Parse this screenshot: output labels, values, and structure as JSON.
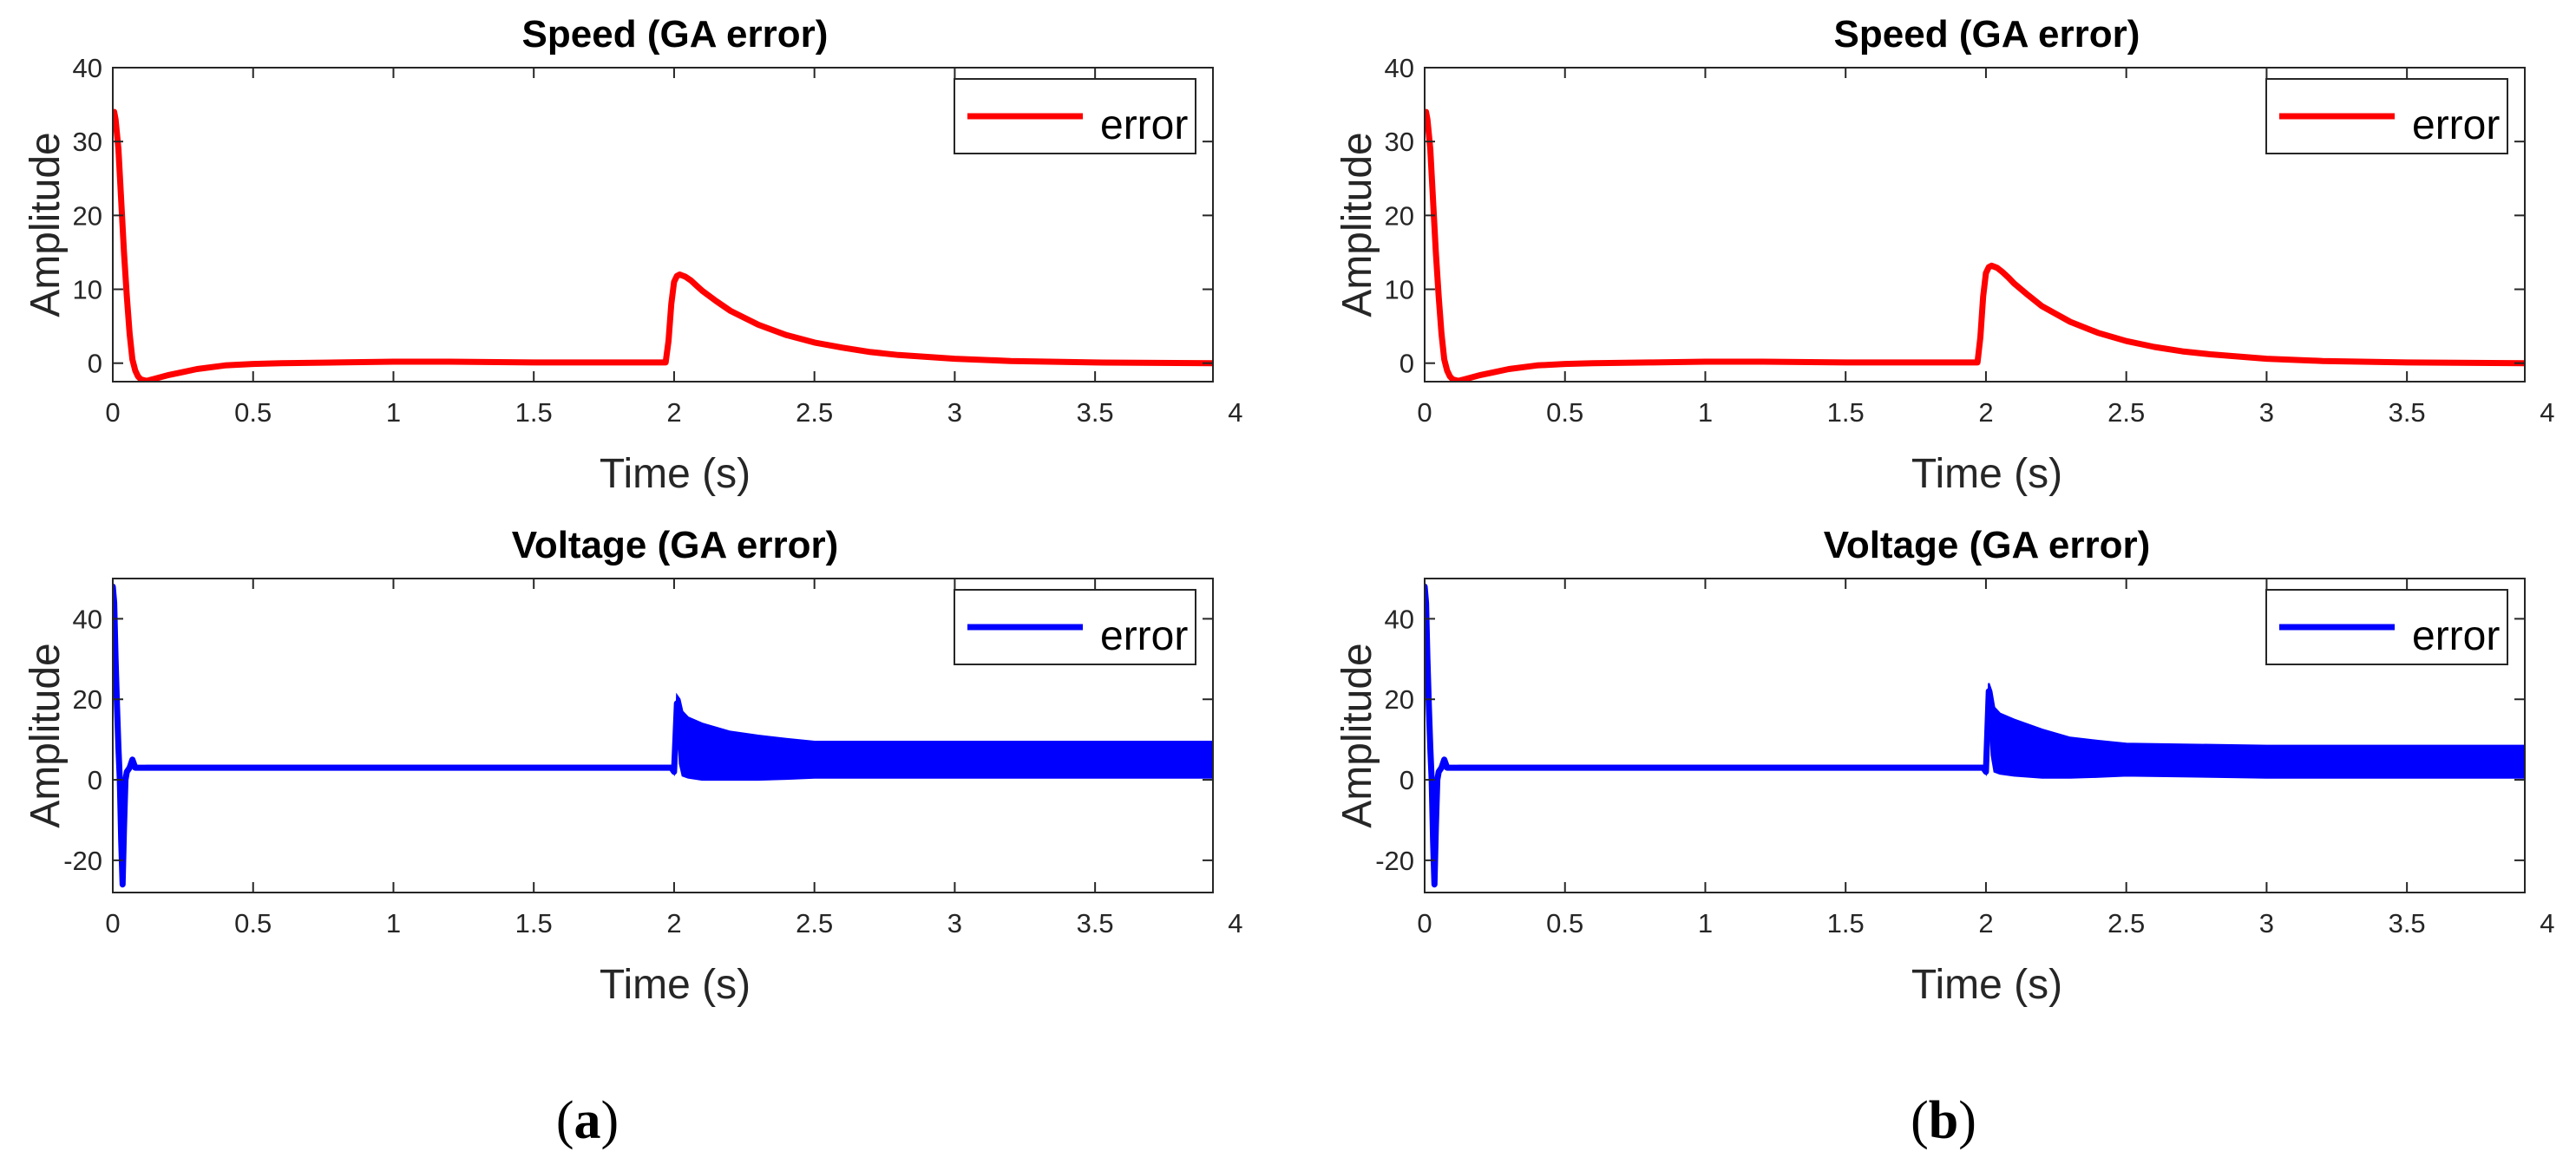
{
  "colors": {
    "speed_series": "#ff0000",
    "voltage_series": "#0000ff",
    "axes": "#262626"
  },
  "chart_data": [
    {
      "id": "a-top",
      "panel": "a",
      "type": "line",
      "title": "Speed (GA error)",
      "xlabel": "Time (s)",
      "ylabel": "Amplitude",
      "xlim": [
        0,
        3.92
      ],
      "ylim": [
        -2.5,
        40
      ],
      "xticks": [
        0,
        0.5,
        1,
        1.5,
        2,
        2.5,
        3,
        3.5,
        4
      ],
      "xtick_labels": [
        "0",
        "0.5",
        "1",
        "1.5",
        "2",
        "2.5",
        "3",
        "3.5",
        "4"
      ],
      "yticks": [
        0,
        10,
        20,
        30,
        40
      ],
      "ytick_labels": [
        "0",
        "10",
        "20",
        "30",
        "40"
      ],
      "legend": "error",
      "legend_position": "top-right",
      "series": [
        {
          "name": "error",
          "color": "#ff0000",
          "style": "smooth",
          "x": [
            0,
            0.005,
            0.01,
            0.02,
            0.03,
            0.04,
            0.05,
            0.06,
            0.07,
            0.08,
            0.09,
            0.1,
            0.12,
            0.15,
            0.2,
            0.25,
            0.3,
            0.4,
            0.5,
            0.6,
            0.8,
            1.0,
            1.2,
            1.5,
            1.8,
            1.97,
            1.98,
            1.99,
            2.0,
            2.01,
            2.02,
            2.04,
            2.06,
            2.08,
            2.1,
            2.15,
            2.2,
            2.3,
            2.4,
            2.5,
            2.6,
            2.7,
            2.8,
            3.0,
            3.2,
            3.5,
            3.92
          ],
          "y": [
            33,
            34,
            33,
            29,
            22,
            15,
            9,
            4,
            0.5,
            -1,
            -1.8,
            -2.2,
            -2.4,
            -2.1,
            -1.6,
            -1.2,
            -0.8,
            -0.3,
            -0.1,
            0,
            0.1,
            0.2,
            0.2,
            0.1,
            0.1,
            0.1,
            3,
            8,
            11,
            11.8,
            12,
            11.7,
            11.2,
            10.5,
            9.8,
            8.4,
            7.1,
            5.2,
            3.8,
            2.8,
            2.1,
            1.5,
            1.1,
            0.6,
            0.3,
            0.1,
            0
          ]
        }
      ]
    },
    {
      "id": "a-bottom",
      "panel": "a",
      "type": "line",
      "title": "Voltage (GA error)",
      "xlabel": "Time (s)",
      "ylabel": "Amplitude",
      "xlim": [
        0,
        3.92
      ],
      "ylim": [
        -28,
        50
      ],
      "xticks": [
        0,
        0.5,
        1,
        1.5,
        2,
        2.5,
        3,
        3.5,
        4
      ],
      "xtick_labels": [
        "0",
        "0.5",
        "1",
        "1.5",
        "2",
        "2.5",
        "3",
        "3.5",
        "4"
      ],
      "yticks": [
        -20,
        0,
        20,
        40
      ],
      "ytick_labels": [
        "-20",
        "0",
        "20",
        "40"
      ],
      "legend": "error",
      "legend_position": "top-right",
      "series": [
        {
          "name": "error",
          "color": "#0000ff",
          "style": "noisy",
          "x": [
            0,
            0.005,
            0.01,
            0.015,
            0.02,
            0.025,
            0.03,
            0.035,
            0.04,
            0.045,
            0.05,
            0.06,
            0.07,
            0.08,
            0.09,
            0.1,
            0.12,
            0.15,
            0.2,
            0.5,
            1.0,
            1.5,
            1.98,
            1.99,
            2.0,
            2.01,
            2.02,
            2.03,
            2.05,
            2.1,
            2.2,
            2.3,
            2.4,
            2.5,
            2.7,
            3.0,
            3.5,
            3.92
          ],
          "y": [
            48,
            44,
            30,
            18,
            8,
            0,
            -15,
            -26,
            -12,
            0,
            2,
            3,
            5,
            3,
            3,
            3,
            3,
            3,
            3,
            3,
            3,
            3,
            3,
            3,
            2,
            19,
            12,
            9,
            8,
            7,
            6,
            5.5,
            5.2,
            5,
            5,
            5,
            5,
            5
          ],
          "band": [
            0,
            0,
            0,
            0,
            0,
            0,
            0,
            0,
            0,
            0,
            0,
            0,
            0,
            0,
            0,
            0,
            0.5,
            0.5,
            0.5,
            0.5,
            0.5,
            0.5,
            0.5,
            0.5,
            0.5,
            2,
            8,
            8,
            7.5,
            7,
            6,
            5.5,
            5,
            4.5,
            4.5,
            4.5,
            4.5,
            4.5
          ]
        }
      ]
    },
    {
      "id": "b-top",
      "panel": "b",
      "type": "line",
      "title": "Speed (GA error)",
      "xlabel": "Time (s)",
      "ylabel": "Amplitude",
      "xlim": [
        0,
        3.92
      ],
      "ylim": [
        -2.5,
        40
      ],
      "xticks": [
        0,
        0.5,
        1,
        1.5,
        2,
        2.5,
        3,
        3.5,
        4
      ],
      "xtick_labels": [
        "0",
        "0.5",
        "1",
        "1.5",
        "2",
        "2.5",
        "3",
        "3.5",
        "4"
      ],
      "yticks": [
        0,
        10,
        20,
        30,
        40
      ],
      "ytick_labels": [
        "0",
        "10",
        "20",
        "30",
        "40"
      ],
      "legend": "error",
      "legend_position": "top-right",
      "series": [
        {
          "name": "error",
          "color": "#ff0000",
          "style": "smooth",
          "x": [
            0,
            0.005,
            0.01,
            0.02,
            0.03,
            0.04,
            0.05,
            0.06,
            0.07,
            0.08,
            0.09,
            0.1,
            0.12,
            0.15,
            0.2,
            0.25,
            0.3,
            0.4,
            0.5,
            0.6,
            0.8,
            1.0,
            1.2,
            1.5,
            1.8,
            1.97,
            1.98,
            1.99,
            2.0,
            2.01,
            2.02,
            2.04,
            2.06,
            2.08,
            2.1,
            2.15,
            2.2,
            2.3,
            2.4,
            2.5,
            2.6,
            2.7,
            2.8,
            3.0,
            3.2,
            3.5,
            3.92
          ],
          "y": [
            33,
            34,
            33,
            29,
            22,
            15,
            9,
            4,
            0.5,
            -1,
            -1.8,
            -2.2,
            -2.4,
            -2.1,
            -1.6,
            -1.2,
            -0.8,
            -0.3,
            -0.1,
            0,
            0.1,
            0.2,
            0.2,
            0.1,
            0.1,
            0.1,
            3.5,
            9,
            12.2,
            13,
            13.2,
            12.9,
            12.3,
            11.6,
            10.8,
            9.2,
            7.7,
            5.6,
            4.1,
            3.0,
            2.2,
            1.6,
            1.2,
            0.6,
            0.3,
            0.1,
            0
          ]
        }
      ]
    },
    {
      "id": "b-bottom",
      "panel": "b",
      "type": "line",
      "title": "Voltage (GA error)",
      "xlabel": "Time (s)",
      "ylabel": "Amplitude",
      "xlim": [
        0,
        3.92
      ],
      "ylim": [
        -28,
        50
      ],
      "xticks": [
        0,
        0.5,
        1,
        1.5,
        2,
        2.5,
        3,
        3.5,
        4
      ],
      "xtick_labels": [
        "0",
        "0.5",
        "1",
        "1.5",
        "2",
        "2.5",
        "3",
        "3.5",
        "4"
      ],
      "yticks": [
        -20,
        0,
        20,
        40
      ],
      "ytick_labels": [
        "-20",
        "0",
        "20",
        "40"
      ],
      "legend": "error",
      "legend_position": "top-right",
      "series": [
        {
          "name": "error",
          "color": "#0000ff",
          "style": "noisy",
          "x": [
            0,
            0.005,
            0.01,
            0.015,
            0.02,
            0.025,
            0.03,
            0.035,
            0.04,
            0.045,
            0.05,
            0.06,
            0.07,
            0.08,
            0.09,
            0.1,
            0.12,
            0.15,
            0.2,
            0.5,
            1.0,
            1.5,
            1.98,
            1.99,
            2.0,
            2.01,
            2.02,
            2.03,
            2.05,
            2.1,
            2.2,
            2.3,
            2.4,
            2.5,
            2.7,
            3.0,
            3.5,
            3.92
          ],
          "y": [
            48,
            44,
            30,
            18,
            8,
            0,
            -15,
            -26,
            -12,
            0,
            2,
            3,
            5,
            3,
            3,
            3,
            3,
            3,
            3,
            3,
            3,
            3,
            3,
            3,
            2,
            22,
            14,
            10,
            9,
            8,
            6.5,
            5.5,
            5.2,
            5,
            4.8,
            4.5,
            4.5,
            4.5
          ],
          "band": [
            0,
            0,
            0,
            0,
            0,
            0,
            0,
            0,
            0,
            0,
            0,
            0,
            0,
            0,
            0,
            0,
            0.5,
            0.5,
            0.5,
            0.5,
            0.5,
            0.5,
            0.5,
            0.5,
            0.5,
            2,
            8,
            8,
            7.5,
            7,
            6,
            5,
            4.5,
            4,
            4,
            4,
            4,
            4
          ]
        }
      ]
    }
  ],
  "captions": {
    "a": "a",
    "b": "b"
  }
}
